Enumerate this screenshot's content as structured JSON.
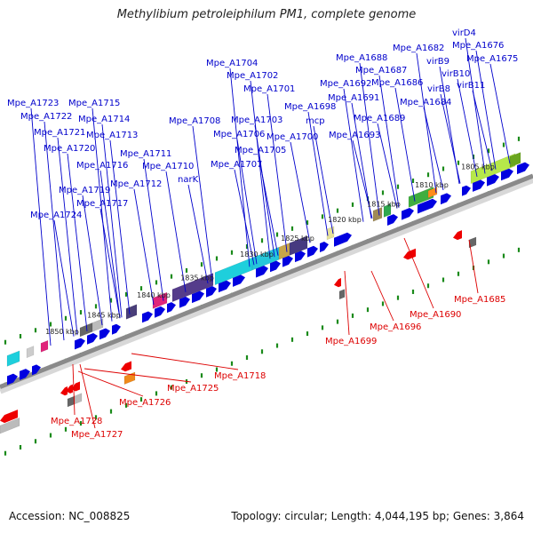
{
  "title": "Methylibium petroleiphilum PM1, complete genome",
  "footer": {
    "accession": "Accession: NC_008825",
    "summary": "Topology: circular; Length: 4,044,195 bp; Genes: 3,864"
  },
  "colors": {
    "forward_label": "#0000cc",
    "reverse_label": "#dd0000",
    "forward_gene": "#0000e0",
    "reverse_gene": "#ee0000",
    "backbone": "#888888",
    "tick": "#1a8a1a"
  },
  "kbp_ticks": [
    "1805 kbp",
    "1810 kbp",
    "1815 kbp",
    "1820 kbp",
    "1825 kbp",
    "1830 kbp",
    "1835 kbp",
    "1840 kbp",
    "1845 kbp",
    "1850 kbp"
  ],
  "forward_labels": [
    "virD4",
    "Mpe_A1676",
    "Mpe_A1682",
    "Mpe_A1675",
    "virB9",
    "Mpe_A1688",
    "Mpe_A1687",
    "virB10",
    "Mpe_A1704",
    "Mpe_A1692",
    "Mpe_A1686",
    "virB8",
    "virB11",
    "Mpe_A1702",
    "Mpe_A1691",
    "Mpe_A1684",
    "Mpe_A1701",
    "Mpe_A1723",
    "Mpe_A1715",
    "Mpe_A1698",
    "Mpe_A1689",
    "Mpe_A1722",
    "Mpe_A1714",
    "Mpe_A1708",
    "Mpe_A1703",
    "mcp",
    "Mpe_A1721",
    "Mpe_A1713",
    "Mpe_A1706",
    "Mpe_A1700",
    "Mpe_A1693",
    "Mpe_A1720",
    "Mpe_A1711",
    "Mpe_A1705",
    "Mpe_A1716",
    "Mpe_A1710",
    "Mpe_A1707",
    "Mpe_A1712",
    "narK",
    "Mpe_A1719",
    "Mpe_A1717",
    "Mpe_A1724"
  ],
  "reverse_labels": [
    "Mpe_A1685",
    "Mpe_A1690",
    "Mpe_A1696",
    "Mpe_A1699",
    "Mpe_A1718",
    "Mpe_A1725",
    "Mpe_A1726",
    "Mpe_A1728",
    "Mpe_A1727"
  ]
}
